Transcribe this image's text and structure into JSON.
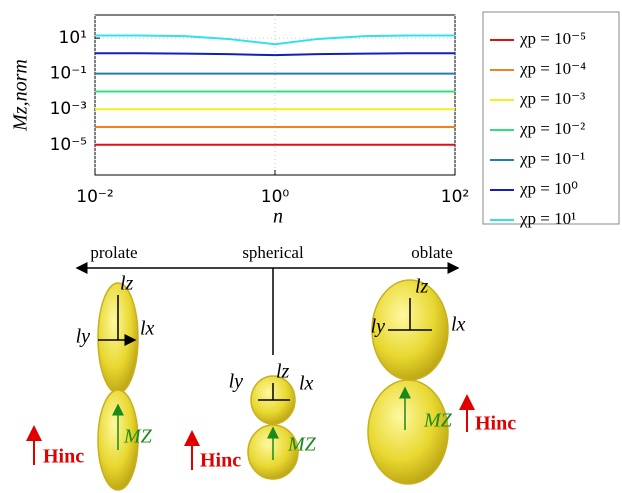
{
  "chart_data": {
    "type": "line",
    "x_label": "n",
    "y_label": "Mz,norm",
    "log_x": true,
    "log_y": true,
    "grid": true,
    "x": [
      0.01,
      0.03,
      0.1,
      0.3,
      1,
      3,
      10,
      30,
      100
    ],
    "xlim": [
      0.01,
      100
    ],
    "xticks": [
      {
        "value": 0.01,
        "label": "10⁻²"
      },
      {
        "value": 1,
        "label": "10⁰"
      },
      {
        "value": 100,
        "label": "10²"
      }
    ],
    "ylim": [
      2e-07,
      200
    ],
    "yticks": [
      {
        "value": 1e-05,
        "label": "10⁻⁵"
      },
      {
        "value": 0.001,
        "label": "10⁻³"
      },
      {
        "value": 0.1,
        "label": "10⁻¹"
      },
      {
        "value": 10,
        "label": "10¹"
      }
    ],
    "series": [
      {
        "name": "χp = 10⁻⁵",
        "color": "#e01010",
        "values": [
          1e-05,
          1e-05,
          1e-05,
          1e-05,
          1e-05,
          1e-05,
          1e-05,
          1e-05,
          1e-05
        ]
      },
      {
        "name": "χp = 10⁻⁴",
        "color": "#f08020",
        "values": [
          0.0001,
          0.0001,
          0.0001,
          0.0001,
          0.0001,
          0.0001,
          0.0001,
          0.0001,
          0.0001
        ]
      },
      {
        "name": "χp = 10⁻³",
        "color": "#f0f020",
        "values": [
          0.001,
          0.001,
          0.001,
          0.001,
          0.001,
          0.001,
          0.001,
          0.001,
          0.001
        ]
      },
      {
        "name": "χp = 10⁻²",
        "color": "#30e080",
        "values": [
          0.01,
          0.01,
          0.01,
          0.01,
          0.01,
          0.01,
          0.01,
          0.01,
          0.01
        ]
      },
      {
        "name": "χp = 10⁻¹",
        "color": "#2080b0",
        "values": [
          0.1,
          0.1,
          0.1,
          0.1,
          0.1,
          0.1,
          0.1,
          0.1,
          0.1
        ]
      },
      {
        "name": "χp = 10⁰",
        "color": "#1020c0",
        "values": [
          1.4,
          1.4,
          1.35,
          1.25,
          1.1,
          1.25,
          1.35,
          1.4,
          1.4
        ]
      },
      {
        "name": "χp = 10¹",
        "color": "#30e0f0",
        "values": [
          14,
          14,
          13,
          9,
          4.5,
          9,
          13,
          14,
          14
        ]
      }
    ]
  },
  "diagram": {
    "axis_labels": [
      "prolate",
      "spherical",
      "oblate"
    ],
    "shapes": [
      {
        "lz": "lz",
        "ly": "ly",
        "lx": "lx",
        "m": "MZ",
        "h": "Hinc"
      },
      {
        "lz": "lz",
        "ly": "ly",
        "lx": "lx",
        "m": "MZ",
        "h": "Hinc"
      },
      {
        "lz": "lz",
        "ly": "ly",
        "lx": "lx",
        "m": "MZ",
        "h": "Hinc"
      }
    ]
  }
}
